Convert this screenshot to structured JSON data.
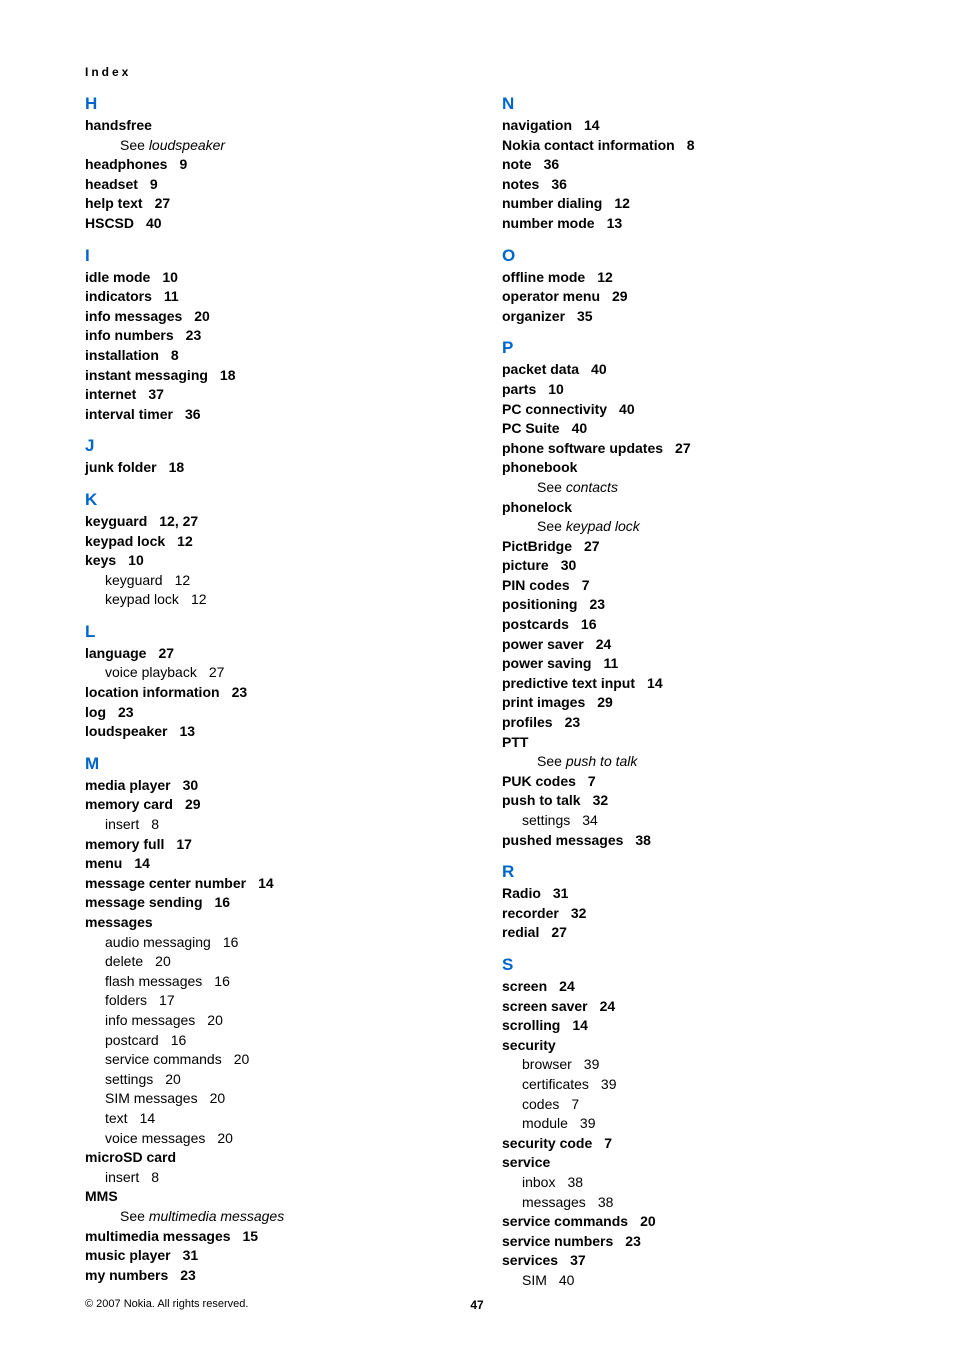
{
  "header": "Index",
  "footer": {
    "copyright": "© 2007 Nokia. All rights reserved.",
    "page": "47"
  },
  "colors": {
    "letter": "#0066cc",
    "text": "#000000",
    "background": "#ffffff"
  },
  "typography": {
    "letter_fontsize": 17,
    "entry_fontsize": 14,
    "header_fontsize": 12,
    "footer_fontsize": 11
  },
  "left_column": [
    {
      "letter": "H",
      "entries": [
        {
          "term": "handsfree",
          "subs": [
            {
              "type": "see",
              "text": "See ",
              "ref": "loudspeaker"
            }
          ]
        },
        {
          "term": "headphones",
          "page": "9"
        },
        {
          "term": "headset",
          "page": "9"
        },
        {
          "term": "help text",
          "page": "27"
        },
        {
          "term": "HSCSD",
          "page": "40"
        }
      ]
    },
    {
      "letter": "I",
      "entries": [
        {
          "term": "idle mode",
          "page": "10"
        },
        {
          "term": "indicators",
          "page": "11"
        },
        {
          "term": "info messages",
          "page": "20"
        },
        {
          "term": "info numbers",
          "page": "23"
        },
        {
          "term": "installation",
          "page": "8"
        },
        {
          "term": "instant messaging",
          "page": "18"
        },
        {
          "term": "internet",
          "page": "37"
        },
        {
          "term": "interval timer",
          "page": "36"
        }
      ]
    },
    {
      "letter": "J",
      "entries": [
        {
          "term": "junk folder",
          "page": "18"
        }
      ]
    },
    {
      "letter": "K",
      "entries": [
        {
          "term": "keyguard",
          "page": "12, 27"
        },
        {
          "term": "keypad lock",
          "page": "12"
        },
        {
          "term": "keys",
          "page": "10",
          "subs": [
            {
              "type": "sub",
              "text": "keyguard",
              "page": "12"
            },
            {
              "type": "sub",
              "text": "keypad lock",
              "page": "12"
            }
          ]
        }
      ]
    },
    {
      "letter": "L",
      "entries": [
        {
          "term": "language",
          "page": "27",
          "subs": [
            {
              "type": "sub",
              "text": "voice playback",
              "page": "27"
            }
          ]
        },
        {
          "term": "location information",
          "page": "23"
        },
        {
          "term": "log",
          "page": "23"
        },
        {
          "term": "loudspeaker",
          "page": "13"
        }
      ]
    },
    {
      "letter": "M",
      "entries": [
        {
          "term": "media player",
          "page": "30"
        },
        {
          "term": "memory card",
          "page": "29",
          "subs": [
            {
              "type": "sub",
              "text": "insert",
              "page": "8"
            }
          ]
        },
        {
          "term": "memory full",
          "page": "17"
        },
        {
          "term": "menu",
          "page": "14"
        },
        {
          "term": "message center number",
          "page": "14"
        },
        {
          "term": "message sending",
          "page": "16"
        },
        {
          "term": "messages",
          "subs": [
            {
              "type": "sub",
              "text": "audio messaging",
              "page": "16"
            },
            {
              "type": "sub",
              "text": "delete",
              "page": "20"
            },
            {
              "type": "sub",
              "text": "flash messages",
              "page": "16"
            },
            {
              "type": "sub",
              "text": "folders",
              "page": "17"
            },
            {
              "type": "sub",
              "text": "info messages",
              "page": "20"
            },
            {
              "type": "sub",
              "text": "postcard",
              "page": "16"
            },
            {
              "type": "sub",
              "text": "service commands",
              "page": "20"
            },
            {
              "type": "sub",
              "text": "settings",
              "page": "20"
            },
            {
              "type": "sub",
              "text": "SIM messages",
              "page": "20"
            },
            {
              "type": "sub",
              "text": "text",
              "page": "14"
            },
            {
              "type": "sub",
              "text": "voice messages",
              "page": "20"
            }
          ]
        },
        {
          "term": "microSD card",
          "subs": [
            {
              "type": "sub",
              "text": "insert",
              "page": "8"
            }
          ]
        },
        {
          "term": "MMS",
          "subs": [
            {
              "type": "see",
              "text": "See ",
              "ref": "multimedia messages"
            }
          ]
        },
        {
          "term": "multimedia messages",
          "page": "15"
        },
        {
          "term": "music player",
          "page": "31"
        },
        {
          "term": "my numbers",
          "page": "23"
        }
      ]
    }
  ],
  "right_column": [
    {
      "letter": "N",
      "entries": [
        {
          "term": "navigation",
          "page": "14"
        },
        {
          "term": "Nokia contact information",
          "page": "8"
        },
        {
          "term": "note",
          "page": "36"
        },
        {
          "term": "notes",
          "page": "36"
        },
        {
          "term": "number dialing",
          "page": "12"
        },
        {
          "term": "number mode",
          "page": "13"
        }
      ]
    },
    {
      "letter": "O",
      "entries": [
        {
          "term": "offline mode",
          "page": "12"
        },
        {
          "term": "operator menu",
          "page": "29"
        },
        {
          "term": "organizer",
          "page": "35"
        }
      ]
    },
    {
      "letter": "P",
      "entries": [
        {
          "term": "packet data",
          "page": "40"
        },
        {
          "term": "parts",
          "page": "10"
        },
        {
          "term": "PC connectivity",
          "page": "40"
        },
        {
          "term": "PC Suite",
          "page": "40"
        },
        {
          "term": "phone software updates",
          "page": "27"
        },
        {
          "term": "phonebook",
          "subs": [
            {
              "type": "see",
              "text": "See ",
              "ref": "contacts"
            }
          ]
        },
        {
          "term": "phonelock",
          "subs": [
            {
              "type": "see",
              "text": "See ",
              "ref": "keypad lock"
            }
          ]
        },
        {
          "term": "PictBridge",
          "page": "27"
        },
        {
          "term": "picture",
          "page": "30"
        },
        {
          "term": "PIN codes",
          "page": "7"
        },
        {
          "term": "positioning",
          "page": "23"
        },
        {
          "term": "postcards",
          "page": "16"
        },
        {
          "term": "power saver",
          "page": "24"
        },
        {
          "term": "power saving",
          "page": "11"
        },
        {
          "term": "predictive text input",
          "page": "14"
        },
        {
          "term": "print images",
          "page": "29"
        },
        {
          "term": "profiles",
          "page": "23"
        },
        {
          "term": "PTT",
          "subs": [
            {
              "type": "see",
              "text": "See ",
              "ref": "push to talk"
            }
          ]
        },
        {
          "term": "PUK codes",
          "page": "7"
        },
        {
          "term": "push to talk",
          "page": "32",
          "subs": [
            {
              "type": "sub",
              "text": "settings",
              "page": "34"
            }
          ]
        },
        {
          "term": "pushed messages",
          "page": "38"
        }
      ]
    },
    {
      "letter": "R",
      "entries": [
        {
          "term": "Radio",
          "page": "31"
        },
        {
          "term": "recorder",
          "page": "32"
        },
        {
          "term": "redial",
          "page": "27"
        }
      ]
    },
    {
      "letter": "S",
      "entries": [
        {
          "term": "screen",
          "page": "24"
        },
        {
          "term": "screen saver",
          "page": "24"
        },
        {
          "term": "scrolling",
          "page": "14"
        },
        {
          "term": "security",
          "subs": [
            {
              "type": "sub",
              "text": "browser",
              "page": "39"
            },
            {
              "type": "sub",
              "text": "certificates",
              "page": "39"
            },
            {
              "type": "sub",
              "text": "codes",
              "page": "7"
            },
            {
              "type": "sub",
              "text": "module",
              "page": "39"
            }
          ]
        },
        {
          "term": "security code",
          "page": "7"
        },
        {
          "term": "service",
          "subs": [
            {
              "type": "sub",
              "text": "inbox",
              "page": "38"
            },
            {
              "type": "sub",
              "text": "messages",
              "page": "38"
            }
          ]
        },
        {
          "term": "service commands",
          "page": "20"
        },
        {
          "term": "service numbers",
          "page": "23"
        },
        {
          "term": "services",
          "page": "37",
          "subs": [
            {
              "type": "sub",
              "text": "SIM",
              "page": "40"
            }
          ]
        }
      ]
    }
  ]
}
